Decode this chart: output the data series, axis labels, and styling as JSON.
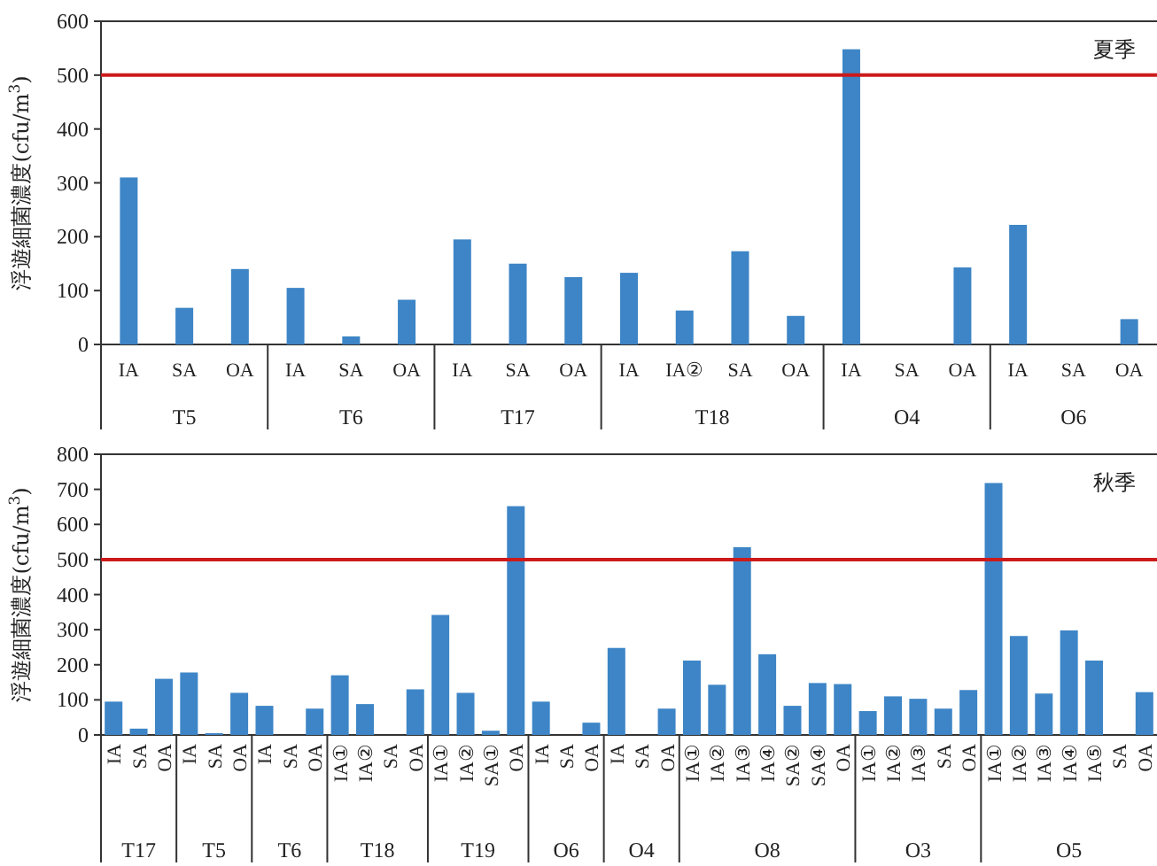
{
  "chart_data": [
    {
      "type": "bar",
      "ylabel": "浮遊細菌濃度(cfu/m$^{3}$)",
      "ylim": [
        0,
        600
      ],
      "yticks": [
        0,
        100,
        200,
        300,
        400,
        500,
        600
      ],
      "color": "#3d85c6",
      "grid": false,
      "categories": [
        "IA",
        "SA",
        "OA",
        "IA",
        "SA",
        "OA",
        "IA",
        "SA",
        "OA",
        "IA",
        "IA②",
        "SA",
        "OA",
        "IA",
        "SA",
        "OA",
        "IA",
        "SA",
        "OA"
      ],
      "values": [
        310,
        68,
        140,
        105,
        15,
        83,
        195,
        150,
        125,
        133,
        63,
        173,
        53,
        548,
        0,
        143,
        222,
        0,
        47
      ],
      "ref_lines": [
        {
          "axis": "y",
          "value": 500,
          "color": "#cc1a1a"
        }
      ],
      "annotations": [
        "夏季",
        "T5",
        "T6",
        "T17",
        "T18",
        "O4",
        "O6"
      ]
    },
    {
      "type": "bar",
      "ylabel": "浮遊細菌濃度(cfu/m$^{3}$)",
      "ylim": [
        0,
        800
      ],
      "yticks": [
        0,
        100,
        200,
        300,
        400,
        500,
        600,
        700,
        800
      ],
      "color": "#3d85c6",
      "grid": false,
      "categories": [
        "IA",
        "SA",
        "OA",
        "IA",
        "SA",
        "OA",
        "IA",
        "SA",
        "OA",
        "IA①",
        "IA②",
        "SA",
        "OA",
        "IA①",
        "IA②",
        "SA①",
        "OA",
        "IA",
        "SA",
        "OA",
        "IA",
        "SA",
        "OA",
        "IA①",
        "IA②",
        "IA③",
        "IA④",
        "SA②",
        "SA④",
        "OA",
        "IA①",
        "IA②",
        "IA③",
        "SA",
        "OA",
        "IA①",
        "IA②",
        "IA③",
        "IA④",
        "IA⑤",
        "SA",
        "OA"
      ],
      "values": [
        95,
        18,
        160,
        178,
        5,
        120,
        83,
        0,
        75,
        170,
        88,
        0,
        130,
        342,
        120,
        12,
        652,
        95,
        0,
        35,
        248,
        0,
        75,
        212,
        143,
        535,
        230,
        83,
        148,
        145,
        68,
        110,
        103,
        75,
        128,
        718,
        282,
        118,
        298,
        212,
        0,
        122
      ],
      "ref_lines": [
        {
          "axis": "y",
          "value": 500,
          "color": "#cc1a1a"
        }
      ],
      "annotations": [
        "秋季",
        "T17",
        "T5",
        "T6",
        "T18",
        "T19",
        "O6",
        "O4",
        "O8",
        "O3",
        "O5"
      ]
    }
  ]
}
